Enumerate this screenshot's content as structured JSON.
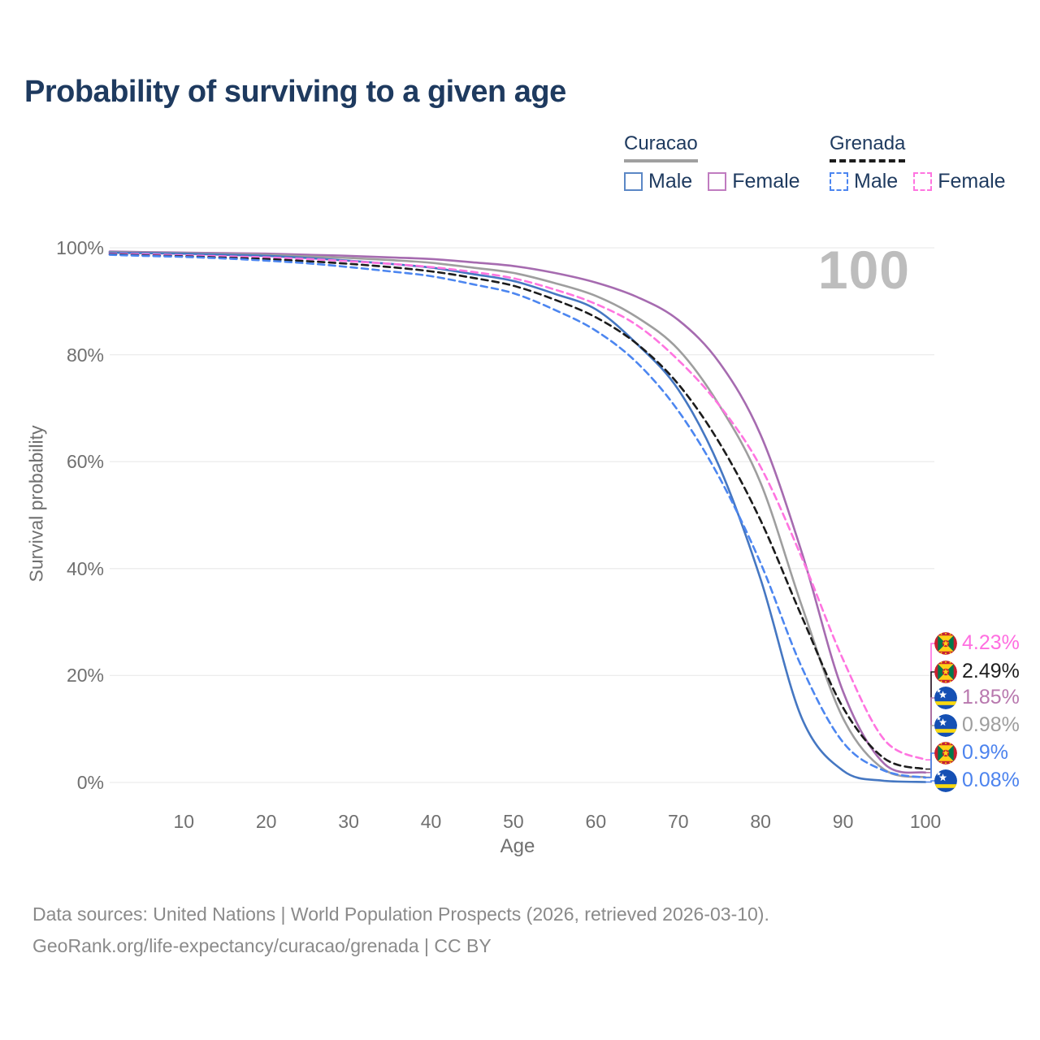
{
  "title": "Probability of surviving to a given age",
  "watermark": "100",
  "legend": {
    "groups": [
      {
        "name": "Curacao",
        "line_style": "solid",
        "line_color": "#a0a0a0",
        "items": [
          {
            "label": "Male",
            "color": "#5b87c5",
            "dash": false
          },
          {
            "label": "Female",
            "color": "#c07cc0",
            "dash": false
          }
        ]
      },
      {
        "name": "Grenada",
        "line_style": "dashed",
        "line_color": "#1c1c1c",
        "items": [
          {
            "label": "Male",
            "color": "#4c86f0",
            "dash": true
          },
          {
            "label": "Female",
            "color": "#ff74e0",
            "dash": true
          }
        ]
      }
    ]
  },
  "axes": {
    "y_label": "Survival probability",
    "x_label": "Age",
    "y_ticks": [
      {
        "label": "100%",
        "value": 100
      },
      {
        "label": "80%",
        "value": 80
      },
      {
        "label": "60%",
        "value": 60
      },
      {
        "label": "40%",
        "value": 40
      },
      {
        "label": "20%",
        "value": 20
      },
      {
        "label": "0%",
        "value": 0
      }
    ],
    "x_ticks": [
      {
        "label": "10",
        "value": 10
      },
      {
        "label": "20",
        "value": 20
      },
      {
        "label": "30",
        "value": 30
      },
      {
        "label": "40",
        "value": 40
      },
      {
        "label": "50",
        "value": 50
      },
      {
        "label": "60",
        "value": 60
      },
      {
        "label": "70",
        "value": 70
      },
      {
        "label": "80",
        "value": 80
      },
      {
        "label": "90",
        "value": 90
      },
      {
        "label": "100",
        "value": 100
      }
    ]
  },
  "end_labels": [
    {
      "country": "Grenada",
      "flag": "grenada",
      "series": "grenada-female",
      "value": "4.23%",
      "end_value": 4.23,
      "color": "#ff6ee0"
    },
    {
      "country": "Grenada",
      "flag": "grenada",
      "series": "grenada-both",
      "value": "2.49%",
      "end_value": 2.49,
      "color": "#1f1f1f"
    },
    {
      "country": "Curacao",
      "flag": "curacao",
      "series": "curacao-female",
      "value": "1.85%",
      "end_value": 1.85,
      "color": "#b878ae"
    },
    {
      "country": "Curacao",
      "flag": "curacao",
      "series": "curacao-both",
      "value": "0.98%",
      "end_value": 0.98,
      "color": "#9e9e9e"
    },
    {
      "country": "Grenada",
      "flag": "grenada",
      "series": "grenada-male",
      "value": "0.9%",
      "end_value": 0.9,
      "color": "#4c83ee"
    },
    {
      "country": "Curacao",
      "flag": "curacao",
      "series": "curacao-male",
      "value": "0.08%",
      "end_value": 0.08,
      "color": "#4c83ee"
    }
  ],
  "footer": {
    "line1": "Data sources: United Nations | World Population Prospects (2026, retrieved 2026-03-10).",
    "line2": "GeoRank.org/life-expectancy/curacao/grenada | CC BY"
  },
  "chart_data": {
    "type": "line",
    "title": "Probability of surviving to a given age",
    "xlabel": "Age",
    "ylabel": "Survival probability",
    "xlim": [
      1,
      100
    ],
    "ylim": [
      0,
      100
    ],
    "grid": "horizontal",
    "legend_position": "top-right",
    "hover_age": 100,
    "x": [
      1,
      5,
      10,
      15,
      20,
      25,
      30,
      35,
      40,
      45,
      50,
      55,
      60,
      65,
      70,
      75,
      80,
      85,
      90,
      95,
      100
    ],
    "series": [
      {
        "id": "curacao-female",
        "name": "Curacao Female",
        "country": "Curacao",
        "sex": "female",
        "color": "#a66bb0",
        "dash": false,
        "values": [
          99.3,
          99.2,
          99.1,
          99.0,
          98.9,
          98.7,
          98.5,
          98.2,
          97.9,
          97.3,
          96.6,
          95.3,
          93.5,
          90.8,
          86.5,
          78.5,
          65,
          43,
          17,
          3.5,
          1.85
        ],
        "end_label": "1.85%"
      },
      {
        "id": "curacao-both",
        "name": "Curacao Both sexes",
        "country": "Curacao",
        "sex": "both",
        "color": "#9e9e9e",
        "dash": false,
        "values": [
          99.2,
          99.1,
          99.0,
          98.85,
          98.7,
          98.4,
          98.1,
          97.7,
          97.2,
          96.3,
          95.3,
          93.4,
          91,
          87,
          81,
          70.5,
          56,
          33,
          12,
          2.4,
          0.98
        ],
        "end_label": "0.98%"
      },
      {
        "id": "curacao-male",
        "name": "Curacao Male",
        "country": "Curacao",
        "sex": "male",
        "color": "#4577c2",
        "dash": false,
        "values": [
          99.1,
          99.0,
          98.9,
          98.7,
          98.5,
          98.1,
          97.6,
          97.0,
          96.3,
          95.1,
          93.8,
          91.4,
          88.5,
          82,
          73.5,
          59,
          38,
          12,
          2.2,
          0.3,
          0.08
        ],
        "end_label": "0.08%"
      },
      {
        "id": "grenada-female",
        "name": "Grenada Female",
        "country": "Grenada",
        "sex": "female",
        "color": "#ff74e0",
        "dash": true,
        "values": [
          98.9,
          98.8,
          98.6,
          98.4,
          98.2,
          97.9,
          97.5,
          97.0,
          96.4,
          95.5,
          94.3,
          92.2,
          89.5,
          85.5,
          79,
          70.5,
          59,
          42,
          23,
          8,
          4.23
        ],
        "end_label": "4.23%"
      },
      {
        "id": "grenada-both",
        "name": "Grenada Both sexes",
        "country": "Grenada",
        "sex": "both",
        "color": "#1c1c1c",
        "dash": true,
        "values": [
          98.8,
          98.6,
          98.4,
          98.15,
          97.9,
          97.5,
          97.0,
          96.4,
          95.6,
          94.4,
          92.9,
          90.3,
          87,
          82,
          74.5,
          63.5,
          49,
          31,
          14,
          4.5,
          2.49
        ],
        "end_label": "2.49%"
      },
      {
        "id": "grenada-male",
        "name": "Grenada Male",
        "country": "Grenada",
        "sex": "male",
        "color": "#4c86f0",
        "dash": true,
        "values": [
          98.7,
          98.5,
          98.3,
          98.0,
          97.6,
          97.1,
          96.4,
          95.6,
          94.7,
          93.2,
          91.5,
          88.4,
          84.5,
          78.5,
          69.5,
          57,
          41,
          21.5,
          7.5,
          2.2,
          0.9
        ],
        "end_label": "0.9%"
      }
    ]
  }
}
